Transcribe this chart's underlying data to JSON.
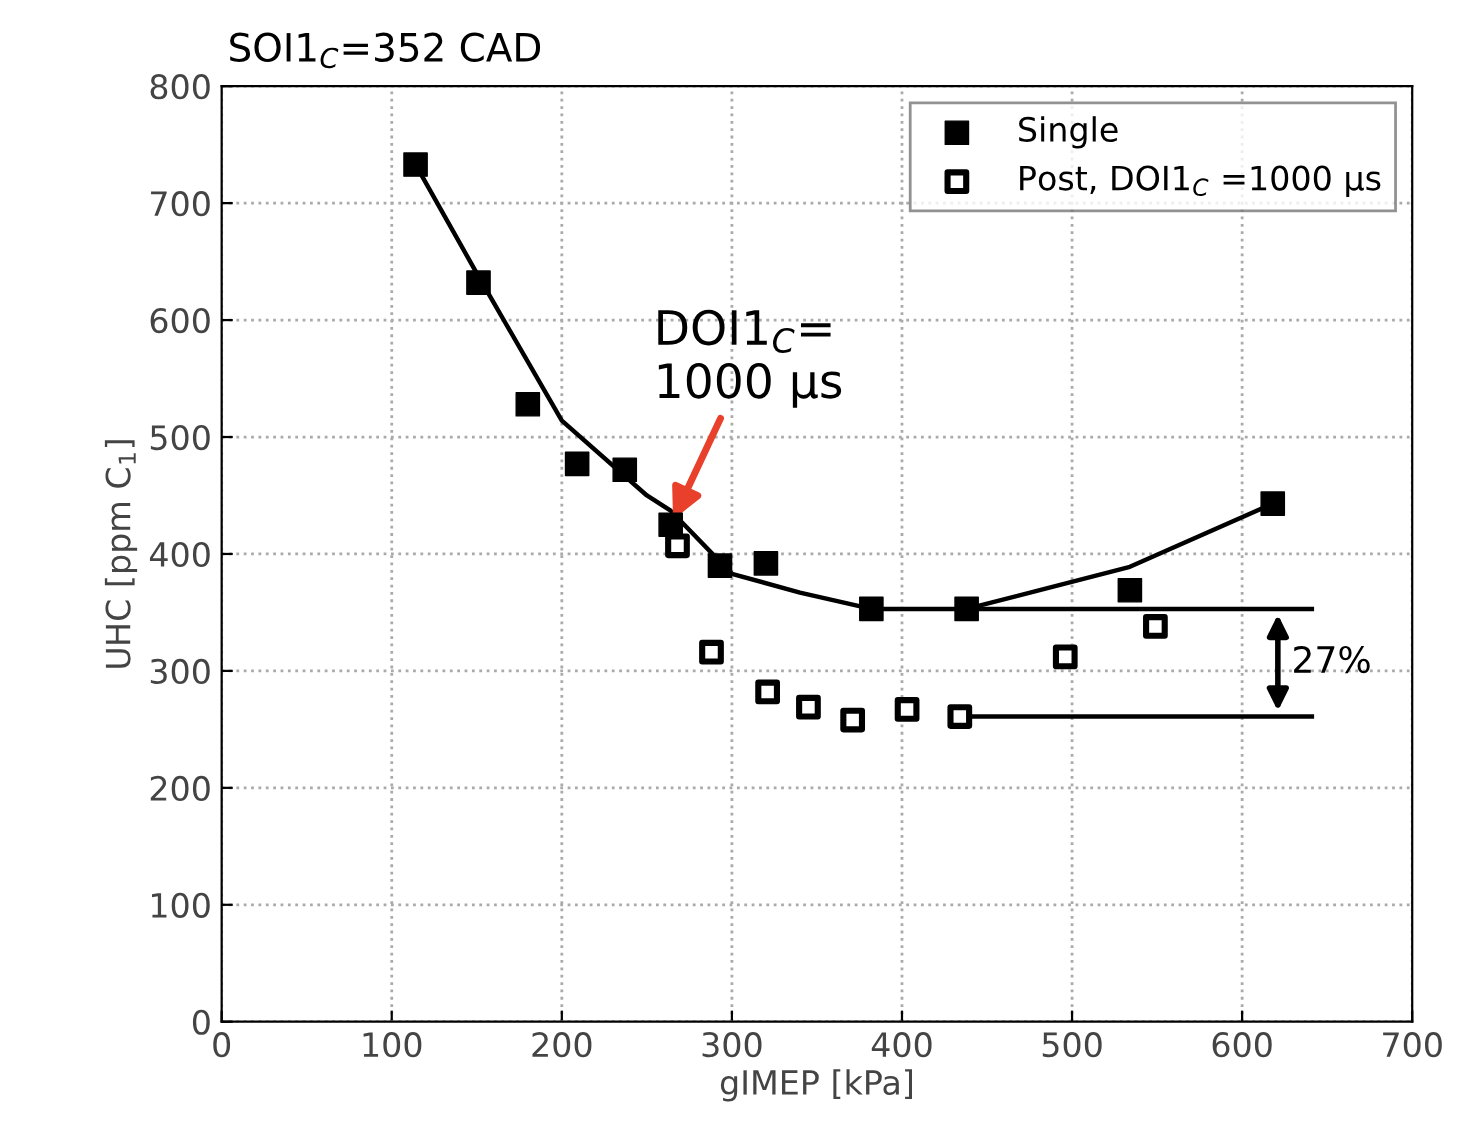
{
  "chart_data": {
    "type": "scatter",
    "title": "SOI1$_{C}$=352 CAD",
    "xlabel": "gIMEP [kPa]",
    "ylabel": "UHC [ppm C$_{1}$]",
    "xlim": [
      0,
      700
    ],
    "ylim": [
      0,
      800
    ],
    "xticks": [
      0,
      100,
      200,
      300,
      400,
      500,
      600,
      700
    ],
    "yticks": [
      0,
      100,
      200,
      300,
      400,
      500,
      600,
      700,
      800
    ],
    "grid": true,
    "legend": "top right",
    "series": [
      {
        "name": "Single",
        "marker": "square",
        "color": "#000000",
        "x": [
          114,
          151,
          180,
          209,
          237,
          264,
          293,
          320,
          382,
          438,
          534,
          618
        ],
        "values": [
          733,
          632,
          528,
          477,
          472,
          425,
          390,
          392,
          353,
          353,
          369,
          443
        ]
      },
      {
        "name": "Post, DOI1$_{C}$ =1000 µs",
        "marker": "square",
        "color": "#ffffff",
        "x": [
          268,
          288,
          321,
          345,
          371,
          403,
          434,
          496,
          549
        ],
        "values": [
          407,
          316,
          282,
          269,
          258,
          267,
          261,
          312,
          338
        ]
      },
      {
        "type": "line",
        "marker": "none",
        "color": "#000000",
        "x": [
          114,
          150,
          200,
          250,
          264,
          300,
          340,
          382,
          438,
          534,
          618
        ],
        "values": [
          733,
          640,
          514,
          450,
          437,
          383,
          367,
          353,
          353,
          389,
          443
        ]
      },
      {
        "type": "line",
        "marker": "none",
        "color": "#000000",
        "x": [
          438,
          641
        ],
        "values": [
          353,
          353
        ]
      },
      {
        "type": "line",
        "marker": "none",
        "color": "#000000",
        "x": [
          434,
          641
        ],
        "values": [
          261,
          261
        ]
      }
    ],
    "annotations": [
      {
        "text": "DOI1$_{C}$=\n1000 µs",
        "x": 264,
        "y": 425
      },
      "27%"
    ]
  }
}
